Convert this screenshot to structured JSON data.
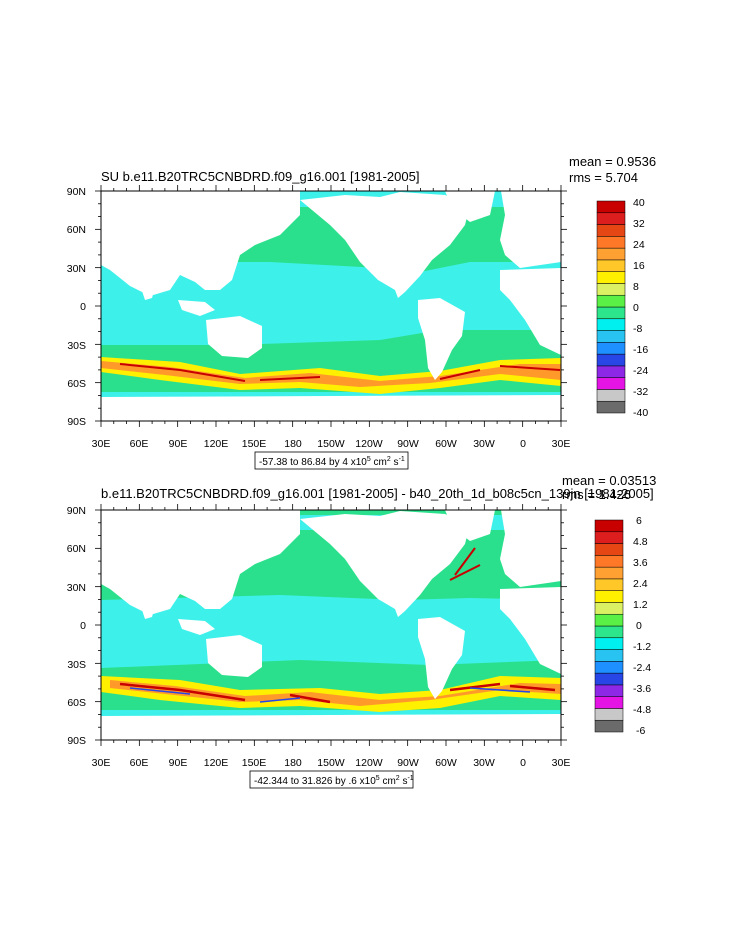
{
  "panels": [
    {
      "title": "SU b.e11.B20TRC5CNBDRD.f09_g16.001 [1981-2005]",
      "mean_label": "mean = 0.9536",
      "rms_label": "rms = 5.704",
      "lat_labels": [
        "90N",
        "60N",
        "30N",
        "0",
        "30S",
        "60S",
        "90S"
      ],
      "lon_labels": [
        "30E",
        "60E",
        "90E",
        "120E",
        "150E",
        "180",
        "150W",
        "120W",
        "90W",
        "60W",
        "30W",
        "0",
        "30E"
      ],
      "colorbar_labels": [
        "40",
        "32",
        "24",
        "16",
        "8",
        "0",
        "-8",
        "-16",
        "-24",
        "-32",
        "-40"
      ],
      "range_text": "-57.38 to 86.84 by 4 x10",
      "range_exp": "5",
      "range_units": " cm",
      "range_units_exp": "2",
      "range_tail": " s",
      "range_tail_exp": "-1"
    },
    {
      "title": "b.e11.B20TRC5CNBDRD.f09_g16.001 [1981-2005] - b40_20th_1d_b08c5cn_139jn [1981-2005]",
      "mean_label": "mean = 0.03513",
      "rms_label": "rms = 1.426",
      "lat_labels": [
        "90N",
        "60N",
        "30N",
        "0",
        "30S",
        "60S",
        "90S"
      ],
      "lon_labels": [
        "30E",
        "60E",
        "90E",
        "120E",
        "150E",
        "180",
        "150W",
        "120W",
        "90W",
        "60W",
        "30W",
        "0",
        "30E"
      ],
      "colorbar_labels": [
        "6",
        "4.8",
        "3.6",
        "2.4",
        "1.2",
        "0",
        "-1.2",
        "-2.4",
        "-3.6",
        "-4.8",
        "-6"
      ],
      "range_text": "-42.344 to 31.826 by .6 x10",
      "range_exp": "5",
      "range_units": " cm",
      "range_units_exp": "2",
      "range_tail": " s",
      "range_tail_exp": "-1"
    }
  ],
  "colorbar_colors": [
    "#6b6b6b",
    "#c8c8c8",
    "#e414e4",
    "#8c28e6",
    "#2846e6",
    "#1e90ff",
    "#28c3f0",
    "#00f0f0",
    "#2de68c",
    "#5af046",
    "#dcf064",
    "#fff000",
    "#ffc828",
    "#ffa032",
    "#ff7828",
    "#e64614",
    "#dc1e1e",
    "#c80000"
  ],
  "map_colors": {
    "ocean": "#2be08c",
    "cyan": "#3ef0ea",
    "land": "#ffffff",
    "yellow": "#fff000",
    "orange": "#ff9a2a",
    "red": "#c80000",
    "blue": "#2846e6"
  }
}
